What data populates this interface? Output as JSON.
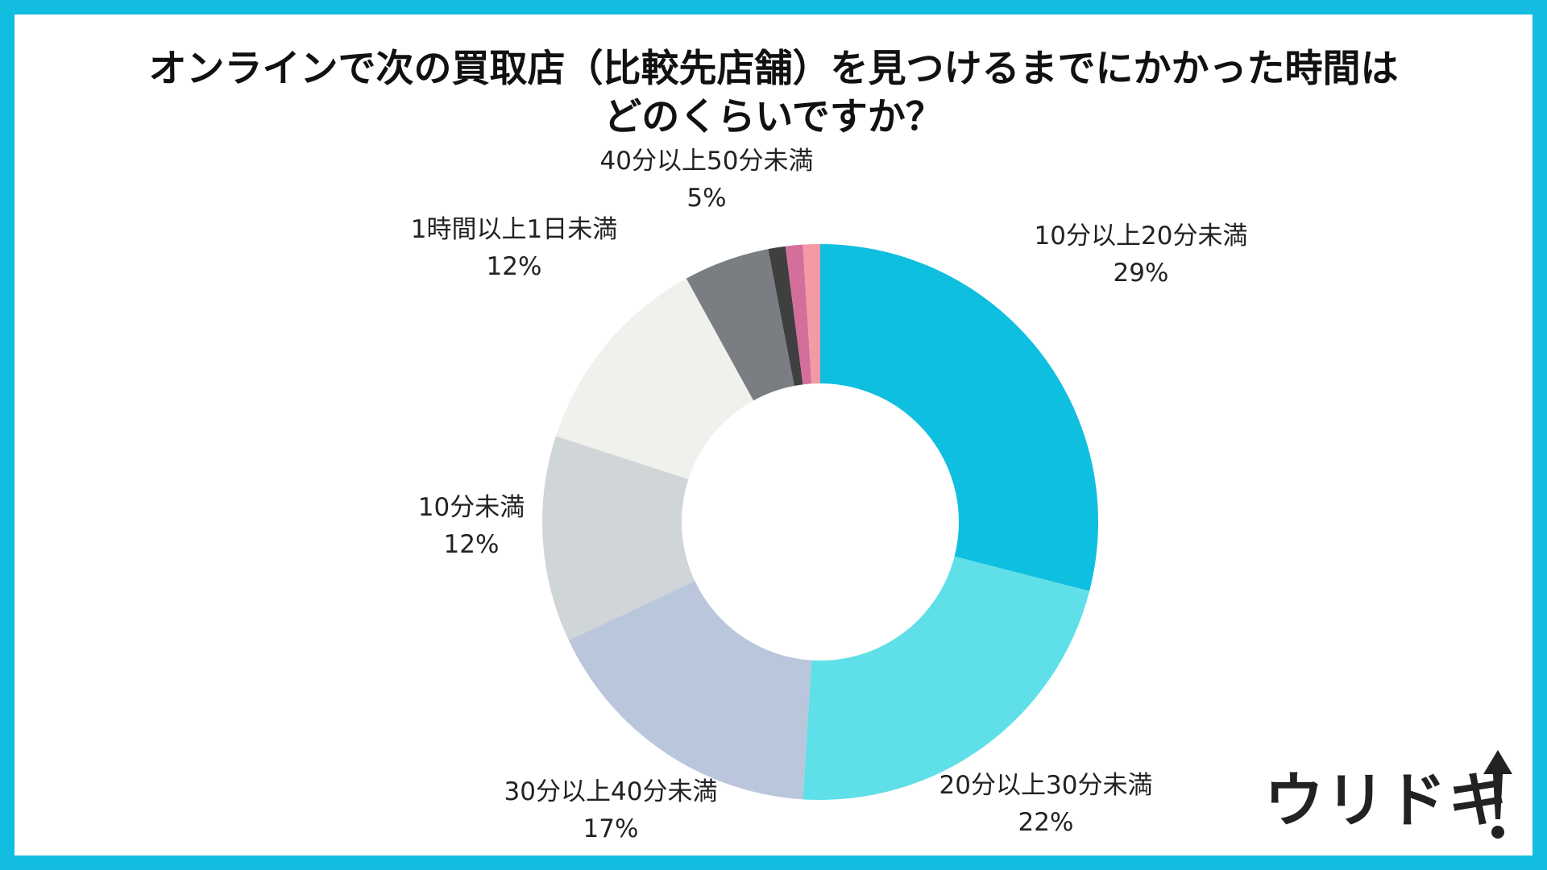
{
  "title_line1": "オンラインで次の買取店（比較先店舗）を見つけるまでにかかった時間は",
  "title_line2": "どのくらいですか？",
  "logo": {
    "text": "ウリドキ",
    "icon": "arrow-up-icon"
  },
  "colors": {
    "border": "#12bde0",
    "background": "#ffffff"
  },
  "chart_data": {
    "type": "donut",
    "title": "オンラインで次の買取店（比較先店舗）を見つけるまでにかかった時間はどのくらいですか？",
    "start": "top",
    "direction": "clockwise",
    "series": [
      {
        "label": "10分以上20分未満",
        "value": 29,
        "value_label": "29%",
        "color": "#0fbfe0"
      },
      {
        "label": "20分以上30分未満",
        "value": 22,
        "value_label": "22%",
        "color": "#5fe0e8"
      },
      {
        "label": "30分以上40分未満",
        "value": 17,
        "value_label": "17%",
        "color": "#bac6dc"
      },
      {
        "label": "10分未満",
        "value": 12,
        "value_label": "12%",
        "color": "#d0d5d8"
      },
      {
        "label": "1時間以上1日未満",
        "value": 12,
        "value_label": "12%",
        "color": "#f0f0ed"
      },
      {
        "label": "40分以上50分未満",
        "value": 5,
        "value_label": "5%",
        "color": "#7a7e83"
      },
      {
        "label": "",
        "value": 1,
        "value_label": "",
        "color": "#3f3f3f"
      },
      {
        "label": "",
        "value": 1,
        "value_label": "",
        "color": "#d46e9a"
      },
      {
        "label": "",
        "value": 1,
        "value_label": "",
        "color": "#f49aa5"
      }
    ]
  }
}
